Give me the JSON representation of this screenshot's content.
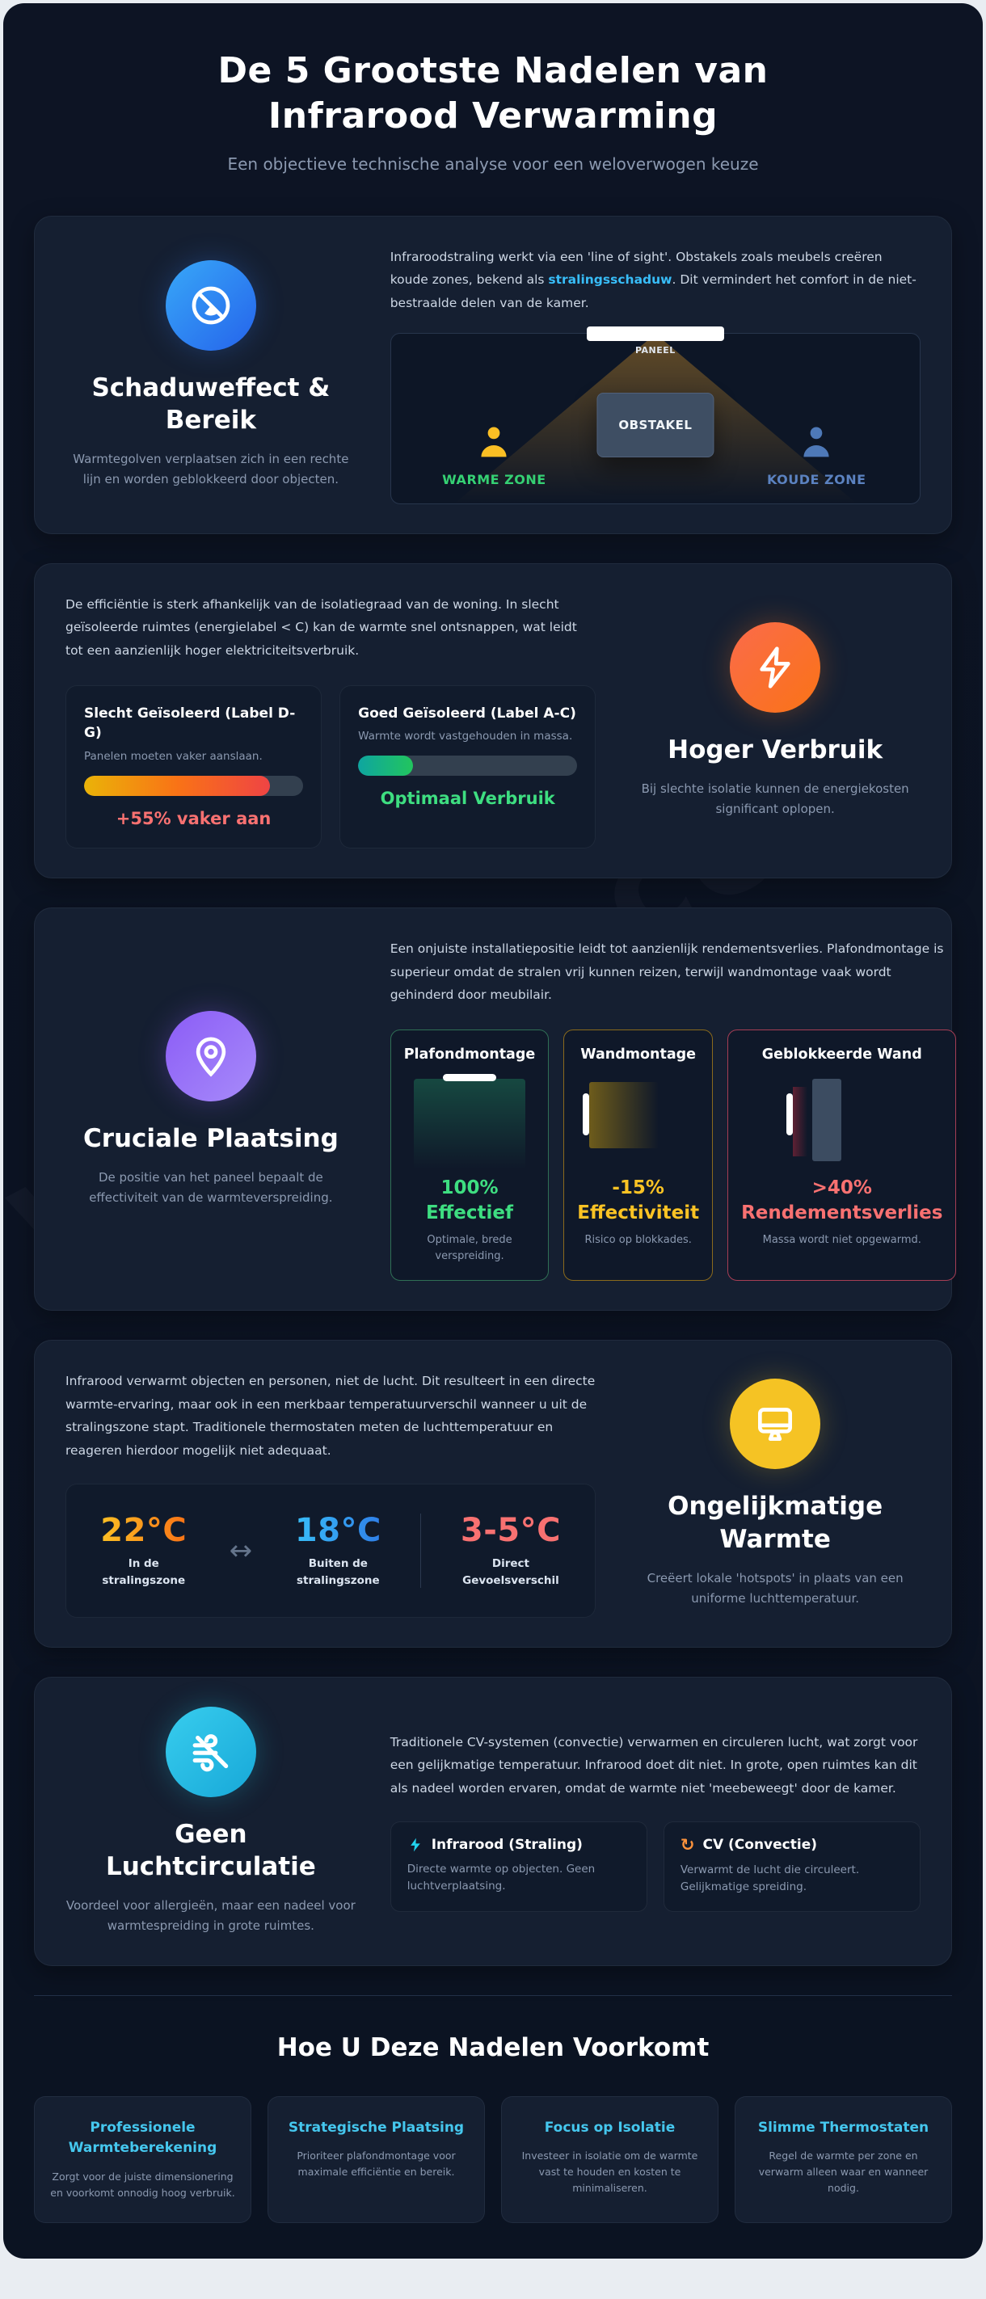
{
  "page": {
    "title_line1": "De 5 Grootste Nadelen van",
    "title_line2": "Infrarood Verwarming",
    "subtitle": "Een objectieve technische analyse voor een weloverwogen keuze",
    "watermark": "warmte.com",
    "footer_title": "Hoe U Deze Nadelen Voorkomt"
  },
  "colors": {
    "background": "#0b1322",
    "card": "#151f31",
    "accent_cyan": "#38bdf8",
    "accent_green": "#3ede81",
    "accent_yellow": "#fbc324",
    "accent_red": "#f87171",
    "muted_text": "#8b99b0"
  },
  "sections": {
    "shadow": {
      "heading": "Schaduweffect & Bereik",
      "sub": "Warmtegolven verplaatsen zich in een rechte lijn en worden geblokkeerd door objecten.",
      "text_before": "Infraroodstraling werkt via een 'line of sight'. Obstakels zoals meubels creëren koude zones, bekend als ",
      "highlight": "stralingsschaduw",
      "text_after": ". Dit vermindert het comfort in de niet-bestraalde delen van de kamer.",
      "diagram": {
        "panel_label": "PANEEL",
        "warm_label": "WARME ZONE",
        "obstacle_label": "OBSTAKEL",
        "cold_label": "KOUDE ZONE"
      }
    },
    "usage": {
      "heading": "Hoger Verbruik",
      "sub": "Bij slechte isolatie kunnen de energiekosten significant oplopen.",
      "intro": "De efficiëntie is sterk afhankelijk van de isolatiegraad van de woning. In slecht geïsoleerde ruimtes (energielabel < C) kan de warmte snel ontsnappen, wat leidt tot een aanzienlijk hoger elektriciteitsverbruik.",
      "cards": [
        {
          "title": "Slecht Geïsoleerd (Label D-G)",
          "desc": "Panelen moeten vaker aanslaan.",
          "bar_percent": 85,
          "value": "+55% vaker aan"
        },
        {
          "title": "Goed Geïsoleerd (Label A-C)",
          "desc": "Warmte wordt vastgehouden in massa.",
          "bar_percent": 25,
          "value": "Optimaal Verbruik"
        }
      ]
    },
    "placement": {
      "heading": "Cruciale Plaatsing",
      "sub": "De positie van het paneel bepaalt de effectiviteit van de warmteverspreiding.",
      "intro": "Een onjuiste installatiepositie leidt tot aanzienlijk rendementsverlies. Plafondmontage is superieur omdat de stralen vrij kunnen reizen, terwijl wandmontage vaak wordt gehinderd door meubilair.",
      "cards": [
        {
          "title": "Plafondmontage",
          "value": "100%",
          "value_word": "Effectief",
          "desc": "Optimale, brede verspreiding."
        },
        {
          "title": "Wandmontage",
          "value": "-15%",
          "value_word": "Effectiviteit",
          "desc": "Risico op blokkades."
        },
        {
          "title": "Geblokkeerde Wand",
          "value": ">40%",
          "value_word": "Rendementsverlies",
          "desc": "Massa wordt niet opgewarmd."
        }
      ]
    },
    "uneven": {
      "heading": "Ongelijkmatige Warmte",
      "sub": "Creëert lokale 'hotspots' in plaats van een uniforme luchttemperatuur.",
      "intro": "Infrarood verwarmt objecten en personen, niet de lucht. Dit resulteert in een directe warmte-ervaring, maar ook in een merkbaar temperatuurverschil wanneer u uit de stralingszone stapt. Traditionele thermostaten meten de luchttemperatuur en reageren hierdoor mogelijk niet adequaat.",
      "arrow": "↔",
      "stats": [
        {
          "value": "22°C",
          "label1": "In de",
          "label2": "stralingszone"
        },
        {
          "value": "18°C",
          "label1": "Buiten de",
          "label2": "stralingszone"
        },
        {
          "value": "3-5°C",
          "label1": "Direct",
          "label2": "Gevoelsverschil"
        }
      ]
    },
    "air": {
      "heading": "Geen Luchtcirculatie",
      "sub": "Voordeel voor allergieën, maar een nadeel voor warmtespreiding in grote ruimtes.",
      "intro": "Traditionele CV-systemen (convectie) verwarmen en circuleren lucht, wat zorgt voor een gelijkmatige temperatuur. Infrarood doet dit niet. In grote, open ruimtes kan dit als nadeel worden ervaren, omdat de warmte niet 'meebeweegt' door de kamer.",
      "refresh_glyph": "↻",
      "compare": [
        {
          "title": "Infrarood (Straling)",
          "desc": "Directe warmte op objecten. Geen luchtverplaatsing."
        },
        {
          "title": "CV (Convectie)",
          "desc": "Verwarmt de lucht die circuleert. Gelijkmatige spreiding."
        }
      ]
    }
  },
  "tips": [
    {
      "title": "Professionele Warmteberekening",
      "desc": "Zorgt voor de juiste dimensionering en voorkomt onnodig hoog verbruik."
    },
    {
      "title": "Strategische Plaatsing",
      "desc": "Prioriteer plafondmontage voor maximale efficiëntie en bereik."
    },
    {
      "title": "Focus op Isolatie",
      "desc": "Investeer in isolatie om de warmte vast te houden en kosten te minimaliseren."
    },
    {
      "title": "Slimme Thermostaten",
      "desc": "Regel de warmte per zone en verwarm alleen waar en wanneer nodig."
    }
  ]
}
